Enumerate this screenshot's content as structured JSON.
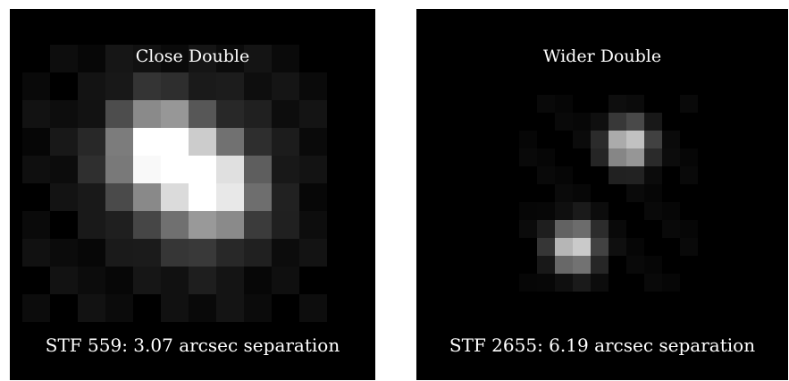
{
  "panels": [
    {
      "id": "left",
      "title": "Close Double",
      "caption": "STF 559: 3.07 arcsec separation"
    },
    {
      "id": "right",
      "title": "Wider Double",
      "caption": "STF 2655: 6.19 arcsec separation"
    }
  ]
}
